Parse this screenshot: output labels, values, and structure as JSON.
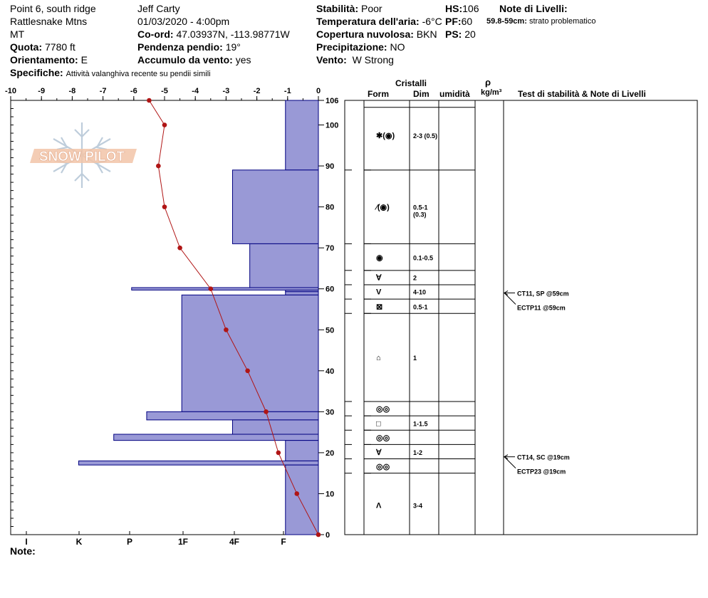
{
  "header": {
    "location": "Point 6, south ridge",
    "range": "Rattlesnake Mtns",
    "state": "MT",
    "elevation_label": "Quota:",
    "elevation": "7780 ft",
    "aspect_label": "Orientamento:",
    "aspect": "E",
    "specifics_label": "Specifiche:",
    "specifics": "Attività valanghiva recente su pendii simili",
    "observer": "Jeff Carty",
    "datetime": "01/03/2020 - 4:00pm",
    "coord_label": "Co-ord:",
    "coord": "47.03937N, -113.98771W",
    "slope_label": "Pendenza pendio:",
    "slope": "19°",
    "wind_load_label": "Accumulo da vento:",
    "wind_load": "yes",
    "stability_label": "Stabilità:",
    "stability": "Poor",
    "air_temp_label": "Temperatura dell'aria:",
    "air_temp": "-6°C",
    "cloud_label": "Copertura nuvolosa:",
    "cloud": "BKN",
    "precip_label": "Precipitazione:",
    "precip": "NO",
    "wind_label": "Vento:",
    "wind": "W Strong",
    "hs_label": "HS:",
    "hs": "106",
    "pf_label": "PF:",
    "pf": "60",
    "ps_label": "PS:",
    "ps": "20",
    "layer_notes_title": "Note di Livelli:",
    "layer_note_range": "59.8-59cm:",
    "layer_note_text": "strato problematico",
    "notes_label": "Note:"
  },
  "logo_text": "SNOW PILOT",
  "table_headers": {
    "crystals": "Cristalli",
    "form": "Form",
    "size": "Dim",
    "humidity": "umidità",
    "rho": "ρ",
    "density_unit": "kg/m³",
    "tests": "Test di stabilità & Note di Livelli"
  },
  "colors": {
    "hardness_fill": "#9999d6",
    "hardness_stroke": "#000080",
    "temperature": "#b01515"
  },
  "chart_data": {
    "type": "bar",
    "description_note": "",
    "temperature_axis": {
      "ticks": [
        -10,
        -9,
        -8,
        -7,
        -6,
        -5,
        -4,
        -3,
        -2,
        -1,
        0
      ],
      "range": [
        -10,
        0
      ]
    },
    "height_axis": {
      "ticks": [
        0,
        10,
        20,
        30,
        40,
        50,
        60,
        70,
        80,
        90,
        100,
        106
      ],
      "range": [
        0,
        106
      ]
    },
    "hardness_axis": {
      "labels": [
        "I",
        "K",
        "P",
        "1F",
        "4F",
        "F"
      ]
    },
    "hardness_layers": [
      {
        "bottom": 89,
        "top": 106,
        "temp_equiv": -1.07
      },
      {
        "bottom": 71,
        "top": 89,
        "temp_equiv": -2.79
      },
      {
        "bottom": 60.3,
        "top": 71,
        "temp_equiv": -2.23
      },
      {
        "bottom": 59.7,
        "top": 60.3,
        "temp_equiv": -6.07
      },
      {
        "bottom": 59.3,
        "top": 59.7,
        "temp_equiv": -1.07
      },
      {
        "bottom": 58.5,
        "top": 59.3,
        "temp_equiv": -1.07
      },
      {
        "bottom": 30,
        "top": 58.5,
        "temp_equiv": -4.44
      },
      {
        "bottom": 28,
        "top": 30,
        "temp_equiv": -5.58
      },
      {
        "bottom": 24.5,
        "top": 28,
        "temp_equiv": -2.79
      },
      {
        "bottom": 23,
        "top": 24.5,
        "temp_equiv": -6.65
      },
      {
        "bottom": 18,
        "top": 23,
        "temp_equiv": -1.07
      },
      {
        "bottom": 17,
        "top": 18,
        "temp_equiv": -7.79
      },
      {
        "bottom": 0,
        "top": 17,
        "temp_equiv": -1.07
      }
    ],
    "temperature_profile": [
      {
        "height": 106,
        "temp": -5.5
      },
      {
        "height": 100,
        "temp": -5.0
      },
      {
        "height": 90,
        "temp": -5.2
      },
      {
        "height": 80,
        "temp": -5.0
      },
      {
        "height": 70,
        "temp": -4.5
      },
      {
        "height": 60,
        "temp": -3.5
      },
      {
        "height": 50,
        "temp": -3.0
      },
      {
        "height": 40,
        "temp": -2.3
      },
      {
        "height": 30,
        "temp": -1.7
      },
      {
        "height": 20,
        "temp": -1.3
      },
      {
        "height": 10,
        "temp": -0.7
      },
      {
        "height": 0,
        "temp": 0.0
      }
    ],
    "layer_boundaries": [
      106,
      89,
      71,
      64.5,
      61,
      57.5,
      54,
      32.5,
      29,
      25.5,
      22,
      18.5,
      15,
      0
    ],
    "crystal_rows": [
      {
        "center": 97.5,
        "form": "✱(◉)",
        "size": "2-3 (0.5)"
      },
      {
        "center": 80,
        "form": "⁄(◉)",
        "size": "0.5-1",
        "size2": "(0.3)"
      },
      {
        "center": 67.7,
        "form": "◉",
        "size": "0.1-0.5"
      },
      {
        "center": 62.8,
        "form": "∀",
        "size": "2"
      },
      {
        "center": 59.3,
        "form": "V",
        "size": "4-10"
      },
      {
        "center": 55.7,
        "form": "⊠",
        "size": "0.5-1"
      },
      {
        "center": 43.3,
        "form": "⌂",
        "size": "1"
      },
      {
        "center": 30.8,
        "form": "◎◎",
        "size": ""
      },
      {
        "center": 27.2,
        "form": "□",
        "size": "1-1.5"
      },
      {
        "center": 23.7,
        "form": "◎◎",
        "size": ""
      },
      {
        "center": 20.2,
        "form": "Ɐ",
        "size": "1-2"
      },
      {
        "center": 16.7,
        "form": "◎◎",
        "size": ""
      },
      {
        "center": 7.2,
        "form": "Λ",
        "size": "3-4"
      }
    ],
    "stability_tests": [
      {
        "height": 59,
        "text": "CT11, SP @59cm"
      },
      {
        "height": 59,
        "text": "ECTP11 @59cm"
      },
      {
        "height": 19,
        "text": "CT14, SC @19cm"
      },
      {
        "height": 19,
        "text": "ECTP23 @19cm"
      }
    ]
  }
}
